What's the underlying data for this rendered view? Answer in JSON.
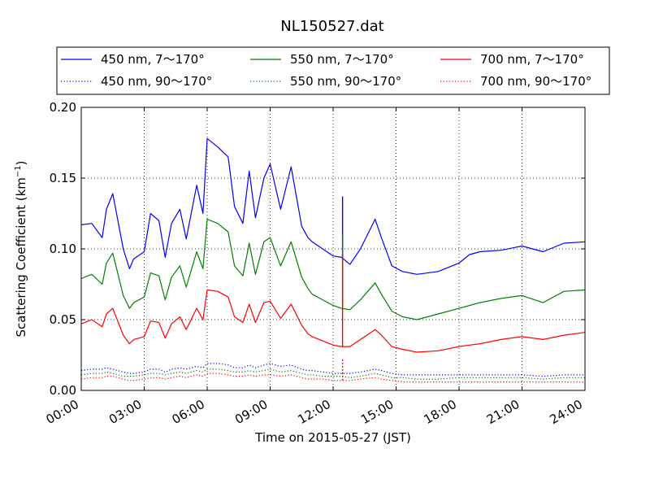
{
  "chart_data": {
    "type": "line",
    "title": "NL150527.dat",
    "xlabel": "Time on 2015-05-27 (JST)",
    "ylabel": "Scattering Coefficient (km",
    "ylabel_sup": "−1",
    "ylabel_close": ")",
    "x_unit": "hours",
    "xlim": [
      0,
      24
    ],
    "ylim": [
      0,
      0.2
    ],
    "x_ticks": [
      0,
      3,
      6,
      9,
      12,
      15,
      18,
      21,
      24
    ],
    "x_tick_labels": [
      "00:00",
      "03:00",
      "06:00",
      "09:00",
      "12:00",
      "15:00",
      "18:00",
      "21:00",
      "24:00"
    ],
    "y_ticks": [
      0,
      0.05,
      0.1,
      0.15,
      0.2
    ],
    "y_tick_labels": [
      "0.00",
      "0.05",
      "0.10",
      "0.15",
      "0.20"
    ],
    "grid": true,
    "legend_position": "top, above plot",
    "x": [
      0.0,
      0.5,
      1.0,
      1.2,
      1.5,
      2.0,
      2.3,
      2.5,
      3.0,
      3.3,
      3.7,
      4.0,
      4.3,
      4.7,
      5.0,
      5.5,
      5.8,
      6.0,
      6.5,
      7.0,
      7.3,
      7.7,
      8.0,
      8.3,
      8.7,
      9.0,
      9.5,
      10.0,
      10.5,
      10.8,
      11.0,
      11.5,
      12.0,
      12.4,
      12.8,
      13.3,
      14.0,
      14.3,
      14.8,
      15.3,
      16.0,
      17.0,
      18.0,
      18.5,
      19.0,
      20.0,
      21.0,
      22.0,
      23.0,
      24.0
    ],
    "series": [
      {
        "name": "450 nm, 7～170°",
        "color": "#0000ff",
        "style": "solid",
        "values": [
          0.117,
          0.118,
          0.108,
          0.128,
          0.139,
          0.1,
          0.086,
          0.093,
          0.098,
          0.125,
          0.12,
          0.094,
          0.118,
          0.128,
          0.107,
          0.145,
          0.125,
          0.178,
          0.172,
          0.165,
          0.13,
          0.118,
          0.155,
          0.122,
          0.15,
          0.16,
          0.128,
          0.158,
          0.116,
          0.108,
          0.105,
          0.1,
          0.095,
          0.094,
          0.089,
          0.1,
          0.121,
          0.108,
          0.088,
          0.084,
          0.082,
          0.084,
          0.09,
          0.096,
          0.098,
          0.099,
          0.102,
          0.098,
          0.104,
          0.105
        ]
      },
      {
        "name": "450 nm, 90～170°",
        "color": "#0000ff",
        "style": "dotted",
        "values": [
          0.014,
          0.015,
          0.015,
          0.016,
          0.015,
          0.013,
          0.012,
          0.012,
          0.013,
          0.015,
          0.015,
          0.013,
          0.015,
          0.016,
          0.015,
          0.017,
          0.016,
          0.019,
          0.019,
          0.018,
          0.016,
          0.016,
          0.018,
          0.016,
          0.018,
          0.019,
          0.017,
          0.018,
          0.015,
          0.014,
          0.014,
          0.013,
          0.012,
          0.012,
          0.012,
          0.013,
          0.015,
          0.014,
          0.012,
          0.011,
          0.011,
          0.011,
          0.011,
          0.011,
          0.011,
          0.011,
          0.011,
          0.01,
          0.011,
          0.011
        ]
      },
      {
        "name": "550 nm, 7～170°",
        "color": "#007f00",
        "style": "solid",
        "values": [
          0.079,
          0.082,
          0.075,
          0.09,
          0.097,
          0.067,
          0.058,
          0.062,
          0.066,
          0.083,
          0.081,
          0.064,
          0.08,
          0.088,
          0.073,
          0.098,
          0.086,
          0.121,
          0.118,
          0.112,
          0.088,
          0.081,
          0.104,
          0.082,
          0.105,
          0.108,
          0.088,
          0.105,
          0.08,
          0.072,
          0.068,
          0.064,
          0.06,
          0.058,
          0.057,
          0.064,
          0.076,
          0.068,
          0.056,
          0.052,
          0.05,
          0.054,
          0.058,
          0.06,
          0.062,
          0.065,
          0.067,
          0.062,
          0.07,
          0.071
        ]
      },
      {
        "name": "550 nm, 90～170°",
        "color": "#007f00",
        "style": "dotted",
        "values": [
          0.011,
          0.012,
          0.012,
          0.013,
          0.012,
          0.01,
          0.01,
          0.01,
          0.011,
          0.012,
          0.012,
          0.011,
          0.012,
          0.013,
          0.012,
          0.014,
          0.013,
          0.015,
          0.015,
          0.014,
          0.013,
          0.013,
          0.014,
          0.013,
          0.014,
          0.015,
          0.013,
          0.014,
          0.012,
          0.011,
          0.011,
          0.01,
          0.01,
          0.01,
          0.009,
          0.01,
          0.012,
          0.011,
          0.009,
          0.009,
          0.008,
          0.008,
          0.009,
          0.009,
          0.009,
          0.009,
          0.009,
          0.008,
          0.009,
          0.009
        ]
      },
      {
        "name": "700 nm, 7～170°",
        "color": "#ff0000",
        "style": "solid",
        "values": [
          0.047,
          0.05,
          0.045,
          0.054,
          0.058,
          0.039,
          0.033,
          0.036,
          0.038,
          0.049,
          0.048,
          0.037,
          0.047,
          0.052,
          0.043,
          0.058,
          0.05,
          0.071,
          0.07,
          0.066,
          0.052,
          0.048,
          0.061,
          0.048,
          0.062,
          0.063,
          0.051,
          0.061,
          0.046,
          0.04,
          0.038,
          0.035,
          0.032,
          0.031,
          0.031,
          0.036,
          0.043,
          0.039,
          0.031,
          0.029,
          0.027,
          0.028,
          0.031,
          0.032,
          0.033,
          0.036,
          0.038,
          0.036,
          0.039,
          0.041
        ]
      },
      {
        "name": "700 nm, 90～170°",
        "color": "#ff0000",
        "style": "dotted",
        "values": [
          0.008,
          0.009,
          0.009,
          0.01,
          0.01,
          0.008,
          0.007,
          0.007,
          0.008,
          0.009,
          0.009,
          0.008,
          0.009,
          0.01,
          0.009,
          0.011,
          0.01,
          0.012,
          0.012,
          0.011,
          0.01,
          0.01,
          0.011,
          0.01,
          0.011,
          0.011,
          0.01,
          0.011,
          0.009,
          0.008,
          0.008,
          0.008,
          0.007,
          0.007,
          0.007,
          0.008,
          0.009,
          0.008,
          0.007,
          0.006,
          0.006,
          0.006,
          0.006,
          0.006,
          0.006,
          0.006,
          0.006,
          0.006,
          0.006,
          0.006
        ]
      }
    ],
    "spikes": [
      {
        "x": 12.45,
        "from": 0.094,
        "to": 0.137,
        "color": "#0000ff",
        "style": "solid"
      },
      {
        "x": 12.45,
        "from": 0.058,
        "to": 0.11,
        "color": "#007f00",
        "style": "solid"
      },
      {
        "x": 12.45,
        "from": 0.031,
        "to": 0.096,
        "color": "#ff0000",
        "style": "solid"
      },
      {
        "x": 12.45,
        "from": 0.007,
        "to": 0.022,
        "color": "#ff0000",
        "style": "dotted"
      }
    ]
  }
}
